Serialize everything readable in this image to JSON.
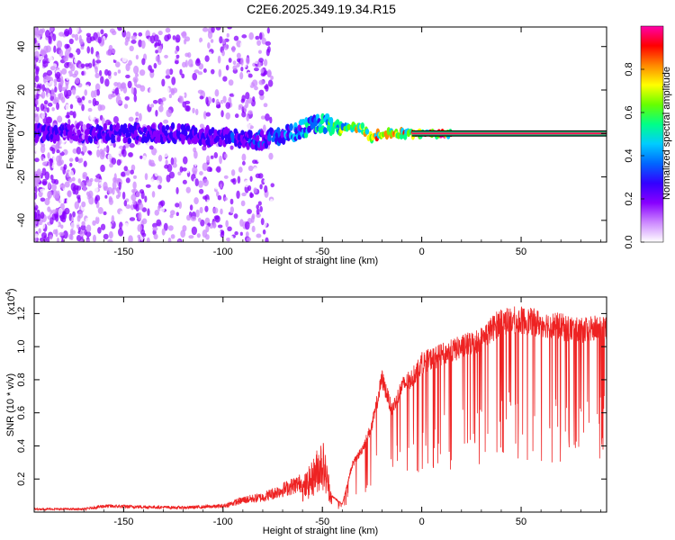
{
  "title": "C2E6.2025.349.19.34.R15",
  "chart_data": [
    {
      "type": "heatmap",
      "name": "spectrogram",
      "xlabel": "Height of straight line (km)",
      "ylabel": "Frequency (Hz)",
      "xlim": [
        -195,
        93
      ],
      "ylim": [
        -50,
        49
      ],
      "xticks": [
        -150,
        -100,
        -50,
        0,
        50
      ],
      "yticks": [
        -40,
        -20,
        0,
        20,
        40
      ],
      "colorbar": {
        "label": "Normalized spectral amplitude",
        "range": [
          0,
          1
        ],
        "ticks": [
          0.0,
          0.2,
          0.4,
          0.6,
          0.8
        ],
        "colormap": [
          "#ffffff",
          "#cc88ff",
          "#8800ff",
          "#3300ff",
          "#0066ff",
          "#00ccff",
          "#00ff88",
          "#66ff00",
          "#ffff00",
          "#ff8800",
          "#ff0000",
          "#ff00aa"
        ]
      },
      "ridge": {
        "x": [
          -195,
          -150,
          -120,
          -100,
          -80,
          -70,
          -60,
          -55,
          -50,
          -45,
          -40,
          -35,
          -30,
          -25,
          -20,
          -10,
          0,
          10,
          93
        ],
        "freq": [
          0,
          0,
          0,
          -2,
          -3,
          -1,
          2,
          4,
          5,
          4,
          3,
          3,
          2,
          -2,
          0,
          0,
          0,
          0,
          0
        ],
        "amplitude": [
          0.25,
          0.3,
          0.3,
          0.3,
          0.35,
          0.4,
          0.5,
          0.55,
          0.6,
          0.6,
          0.7,
          0.75,
          0.8,
          0.85,
          0.9,
          0.95,
          0.97,
          0.98,
          0.98
        ]
      }
    },
    {
      "type": "line",
      "name": "snr",
      "xlabel": "Height of straight line (km)",
      "ylabel": "SNR (10 * v/v)",
      "scale_label": "(x10",
      "scale_exponent": "4",
      "scale_close": ")",
      "color": "#ee2222",
      "xlim": [
        -195,
        93
      ],
      "ylim": [
        0,
        1.3
      ],
      "xticks": [
        -150,
        -100,
        -50,
        0,
        50
      ],
      "yticks": [
        0.2,
        0.4,
        0.6,
        0.8,
        1.0,
        1.2
      ],
      "envelope": {
        "x": [
          -195,
          -170,
          -160,
          -120,
          -100,
          -90,
          -80,
          -70,
          -60,
          -55,
          -50,
          -45,
          -40,
          -35,
          -30,
          -25,
          -20,
          -15,
          -10,
          -5,
          0,
          10,
          20,
          30,
          40,
          50,
          60,
          70,
          80,
          93
        ],
        "y": [
          0.02,
          0.02,
          0.04,
          0.03,
          0.04,
          0.08,
          0.1,
          0.15,
          0.2,
          0.3,
          0.45,
          0.1,
          0.05,
          0.3,
          0.4,
          0.55,
          0.85,
          0.65,
          0.8,
          0.85,
          0.95,
          1.0,
          1.05,
          1.1,
          1.22,
          1.22,
          1.2,
          1.18,
          1.15,
          1.18
        ]
      }
    }
  ]
}
